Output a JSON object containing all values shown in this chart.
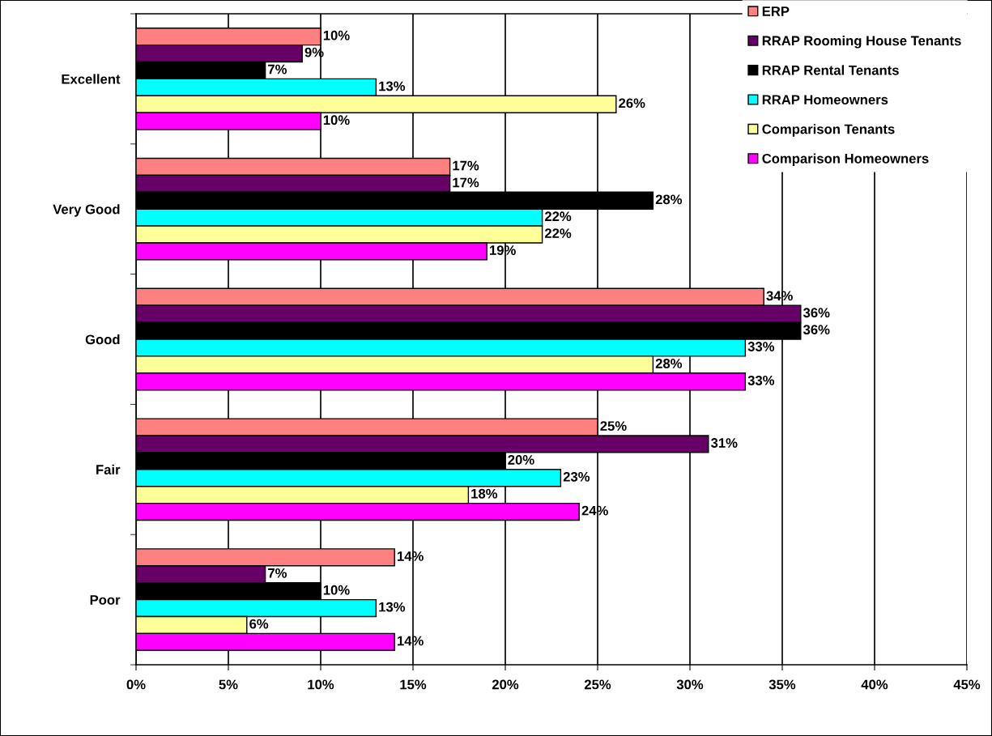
{
  "chart_data": {
    "type": "bar",
    "orientation": "horizontal",
    "categories": [
      "Excellent",
      "Very Good",
      "Good",
      "Fair",
      "Poor"
    ],
    "series": [
      {
        "name": "ERP",
        "color": "#ff8080",
        "values": [
          10,
          17,
          34,
          25,
          14
        ],
        "value_labels": [
          "10%",
          "17%",
          "34%",
          "25%",
          "14%"
        ]
      },
      {
        "name": "RRAP Rooming House Tenants",
        "color": "#660066",
        "values": [
          9,
          17,
          36,
          31,
          7
        ],
        "value_labels": [
          "9%",
          "17%",
          "36%",
          "31%",
          "7%"
        ]
      },
      {
        "name": "RRAP Rental Tenants",
        "color": "#000000",
        "values": [
          7,
          28,
          36,
          20,
          10
        ],
        "value_labels": [
          "7%",
          "28%",
          "36%",
          "20%",
          "10%"
        ]
      },
      {
        "name": "RRAP Homeowners",
        "color": "#00ffff",
        "values": [
          13,
          22,
          33,
          23,
          13
        ],
        "value_labels": [
          "13%",
          "22%",
          "33%",
          "23%",
          "13%"
        ]
      },
      {
        "name": "Comparison Tenants",
        "color": "#ffff99",
        "values": [
          26,
          22,
          28,
          18,
          6
        ],
        "value_labels": [
          "26%",
          "22%",
          "28%",
          "18%",
          "6%"
        ]
      },
      {
        "name": "Comparison Homeowners",
        "color": "#ff00ff",
        "values": [
          10,
          19,
          33,
          24,
          14
        ],
        "value_labels": [
          "10%",
          "19%",
          "33%",
          "24%",
          "14%"
        ]
      }
    ],
    "xlim": [
      0,
      45
    ],
    "xticks": [
      {
        "value": 0,
        "label": "0%"
      },
      {
        "value": 5,
        "label": "5%"
      },
      {
        "value": 10,
        "label": "10%"
      },
      {
        "value": 15,
        "label": "15%"
      },
      {
        "value": 20,
        "label": "20%"
      },
      {
        "value": 25,
        "label": "25%"
      },
      {
        "value": 30,
        "label": "30%"
      },
      {
        "value": 35,
        "label": "35%"
      },
      {
        "value": 40,
        "label": "40%"
      },
      {
        "value": 45,
        "label": "45%"
      }
    ],
    "grid": "x",
    "legend": "top right"
  }
}
